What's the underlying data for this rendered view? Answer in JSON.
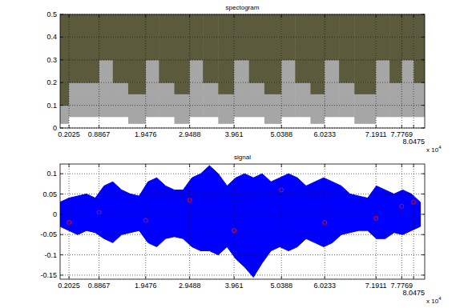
{
  "chart_data": [
    {
      "type": "heatmap",
      "title": "spectogram",
      "x": [
        0,
        0.2,
        0.89,
        1.2,
        1.55,
        1.95,
        2.25,
        2.6,
        2.95,
        3.25,
        3.6,
        3.96,
        4.3,
        4.65,
        5.04,
        5.35,
        5.7,
        6.02,
        6.35,
        6.7,
        7.19,
        7.5,
        7.78,
        8.05,
        8.3
      ],
      "y": [
        0,
        0.02,
        0.05,
        0.1,
        0.15,
        0.2,
        0.25,
        0.3,
        0.35,
        0.4,
        0.5
      ],
      "cells": [
        [
          2,
          1,
          1,
          0,
          0,
          0,
          0,
          0,
          0,
          0
        ],
        [
          2,
          2,
          1,
          1,
          1,
          0,
          0,
          0,
          0,
          0
        ],
        [
          2,
          2,
          1,
          1,
          1,
          1,
          1,
          0,
          0,
          0
        ],
        [
          2,
          2,
          1,
          1,
          1,
          0,
          0,
          0,
          0,
          0
        ],
        [
          2,
          1,
          1,
          1,
          0,
          0,
          0,
          0,
          0,
          0
        ],
        [
          2,
          2,
          1,
          1,
          1,
          1,
          1,
          0,
          0,
          0
        ],
        [
          2,
          2,
          1,
          1,
          1,
          0,
          0,
          0,
          0,
          0
        ],
        [
          2,
          1,
          1,
          1,
          0,
          0,
          0,
          0,
          0,
          0
        ],
        [
          2,
          2,
          1,
          1,
          1,
          1,
          1,
          0,
          0,
          0
        ],
        [
          2,
          2,
          1,
          1,
          1,
          0,
          0,
          0,
          0,
          0
        ],
        [
          2,
          1,
          1,
          1,
          0,
          0,
          0,
          0,
          0,
          0
        ],
        [
          2,
          2,
          1,
          1,
          1,
          1,
          1,
          0,
          0,
          0
        ],
        [
          2,
          2,
          1,
          1,
          1,
          0,
          0,
          0,
          0,
          0
        ],
        [
          2,
          1,
          1,
          1,
          0,
          0,
          0,
          0,
          0,
          0
        ],
        [
          2,
          2,
          1,
          1,
          1,
          1,
          1,
          0,
          0,
          0
        ],
        [
          2,
          2,
          1,
          1,
          1,
          0,
          0,
          0,
          0,
          0
        ],
        [
          2,
          1,
          1,
          1,
          0,
          0,
          0,
          0,
          0,
          0
        ],
        [
          2,
          2,
          1,
          1,
          1,
          1,
          1,
          0,
          0,
          0
        ],
        [
          2,
          2,
          1,
          1,
          1,
          0,
          0,
          0,
          0,
          0
        ],
        [
          2,
          1,
          1,
          1,
          0,
          0,
          0,
          0,
          0,
          0
        ],
        [
          2,
          2,
          1,
          1,
          1,
          1,
          1,
          0,
          0,
          0
        ],
        [
          2,
          2,
          1,
          1,
          1,
          0,
          0,
          0,
          0,
          0
        ],
        [
          2,
          2,
          1,
          1,
          1,
          1,
          1,
          0,
          0,
          0
        ],
        [
          2,
          2,
          1,
          1,
          1,
          0,
          0,
          0,
          0,
          0
        ]
      ],
      "colors": [
        "#5b5a3c",
        "#a6a6a6",
        "#ffffff"
      ],
      "xlim": [
        0,
        8.3
      ],
      "ylim": [
        0,
        0.5
      ],
      "xticks": [
        0.2025,
        0.8867,
        1.9476,
        2.9488,
        3.961,
        5.0388,
        6.0233,
        7.1911,
        7.7769,
        8.0475
      ],
      "yticks": [
        0,
        0.1,
        0.2,
        0.3,
        0.4,
        0.5
      ],
      "grid": true,
      "x_multiplier": {
        "base": "x 10",
        "exponent": "4"
      }
    },
    {
      "type": "area",
      "title": "signal",
      "x": [
        0,
        0.2,
        0.4,
        0.6,
        0.8,
        1,
        1.2,
        1.4,
        1.6,
        1.8,
        2,
        2.2,
        2.4,
        2.6,
        2.8,
        3,
        3.2,
        3.4,
        3.6,
        3.8,
        4,
        4.2,
        4.4,
        4.6,
        4.8,
        5,
        5.2,
        5.4,
        5.6,
        5.8,
        6,
        6.2,
        6.4,
        6.6,
        6.8,
        7,
        7.2,
        7.4,
        7.6,
        7.8,
        8,
        8.2
      ],
      "series": [
        {
          "color": "#0000ff",
          "values": [
            0.03,
            0.04,
            0.045,
            0.05,
            0.04,
            0.07,
            0.08,
            0.06,
            0.05,
            0.045,
            0.08,
            0.09,
            0.07,
            0.06,
            0.06,
            0.09,
            0.1,
            0.12,
            0.1,
            0.07,
            0.09,
            0.1,
            0.09,
            0.1,
            0.08,
            0.09,
            0.1,
            0.09,
            0.07,
            0.08,
            0.09,
            0.08,
            0.07,
            0.05,
            0.045,
            0.04,
            0.07,
            0.06,
            0.05,
            0.06,
            0.05,
            0.03
          ],
          "lower": [
            -0.03,
            -0.04,
            -0.05,
            -0.04,
            -0.045,
            -0.06,
            -0.07,
            -0.05,
            -0.045,
            -0.04,
            -0.07,
            -0.08,
            -0.06,
            -0.055,
            -0.06,
            -0.08,
            -0.09,
            -0.09,
            -0.1,
            -0.08,
            -0.11,
            -0.13,
            -0.155,
            -0.12,
            -0.09,
            -0.08,
            -0.09,
            -0.08,
            -0.06,
            -0.07,
            -0.08,
            -0.07,
            -0.05,
            -0.045,
            -0.04,
            -0.04,
            -0.06,
            -0.06,
            -0.045,
            -0.05,
            -0.04,
            -0.03
          ]
        },
        {
          "type": "scatter",
          "color": "#ff0000",
          "marker": "circle",
          "x": [
            0.2025,
            0.8867,
            1.9476,
            2.9488,
            3.961,
            5.0388,
            6.0233,
            7.1911,
            7.7769,
            8.0475
          ],
          "values": [
            -0.02,
            0.005,
            -0.015,
            0.035,
            -0.04,
            0.06,
            -0.02,
            -0.01,
            0.02,
            0.03
          ]
        }
      ],
      "xlim": [
        0,
        8.3
      ],
      "ylim": [
        -0.16,
        0.124
      ],
      "xticks": [
        0.2025,
        0.8867,
        1.9476,
        2.9488,
        3.961,
        5.0388,
        6.0233,
        7.1911,
        7.7769,
        8.0475
      ],
      "yticks": [
        -0.15,
        -0.1,
        -0.05,
        0,
        0.05,
        0.1
      ],
      "grid": true,
      "x_multiplier": {
        "base": "x 10",
        "exponent": "4"
      }
    }
  ]
}
